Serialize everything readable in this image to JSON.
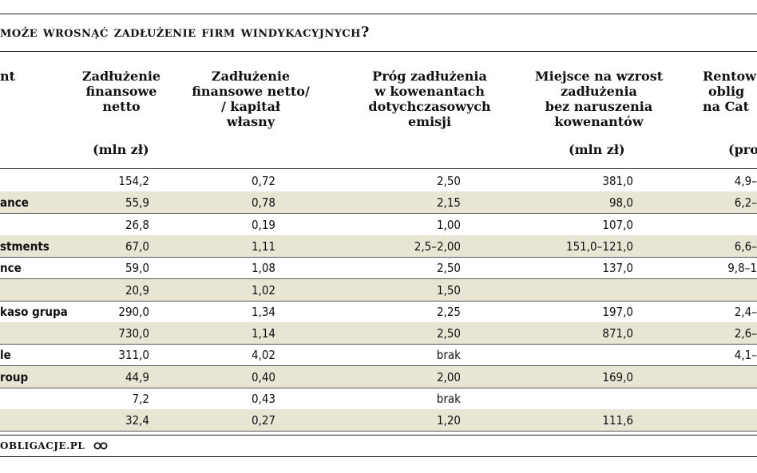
{
  "title": "może wrosnąć zadłużenie firm windykacyjnych?",
  "columns": [
    {
      "label_lines": [
        "nt"
      ],
      "unit": ""
    },
    {
      "label_lines": [
        "Zadłużenie",
        "finansowe",
        "netto"
      ],
      "unit": "(mln zł)"
    },
    {
      "label_lines": [
        "Zadłużenie",
        "finansowe netto/",
        "/ kapitał",
        "własny"
      ],
      "unit": ""
    },
    {
      "label_lines": [
        "Próg zadłużenia",
        "w kowenantach",
        "dotychczasowych",
        "emisji"
      ],
      "unit": ""
    },
    {
      "label_lines": [
        "Miejsce na wzrost",
        "zadłużenia",
        "bez naruszenia",
        "kowenantów"
      ],
      "unit": "(mln zł)"
    },
    {
      "label_lines": [
        "Rentow",
        "oblig",
        "na Cat"
      ],
      "unit": "(pro"
    }
  ],
  "rows": [
    {
      "name": "",
      "debt": "154,2",
      "ratio": "0,72",
      "threshold": "2,50",
      "room": "381,0",
      "yield": "4,9–"
    },
    {
      "name": "ance",
      "debt": "55,9",
      "ratio": "0,78",
      "threshold": "2,15",
      "room": "98,0",
      "yield": "6,2–"
    },
    {
      "name": "",
      "debt": "26,8",
      "ratio": "0,19",
      "threshold": "1,00",
      "room": "107,0",
      "yield": ""
    },
    {
      "name": "stments",
      "debt": "67,0",
      "ratio": "1,11",
      "threshold": "2,5–2,00",
      "room": "151,0–121,0",
      "yield": "6,6–"
    },
    {
      "name": "nce",
      "debt": "59,0",
      "ratio": "1,08",
      "threshold": "2,50",
      "room": "137,0",
      "yield": "9,8–1"
    },
    {
      "name": "",
      "debt": "20,9",
      "ratio": "1,02",
      "threshold": "1,50",
      "room": "",
      "yield": ""
    },
    {
      "name": "kaso grupa",
      "debt": "290,0",
      "ratio": "1,34",
      "threshold": "2,25",
      "room": "197,0",
      "yield": "2,4–"
    },
    {
      "name": "",
      "debt": "730,0",
      "ratio": "1,14",
      "threshold": "2,50",
      "room": "871,0",
      "yield": "2,6–"
    },
    {
      "name": "le",
      "debt": "311,0",
      "ratio": "4,02",
      "threshold": "brak",
      "room": "",
      "yield": "4,1–"
    },
    {
      "name": "roup",
      "debt": "44,9",
      "ratio": "0,40",
      "threshold": "2,00",
      "room": "169,0",
      "yield": ""
    },
    {
      "name": "",
      "debt": "7,2",
      "ratio": "0,43",
      "threshold": "brak",
      "room": "",
      "yield": ""
    },
    {
      "name": "",
      "debt": "32,4",
      "ratio": "0,27",
      "threshold": "1,20",
      "room": "111,6",
      "yield": ""
    }
  ],
  "footer": {
    "source": "obligacje.pl",
    "logo_icon": "infinity-logo-icon"
  }
}
